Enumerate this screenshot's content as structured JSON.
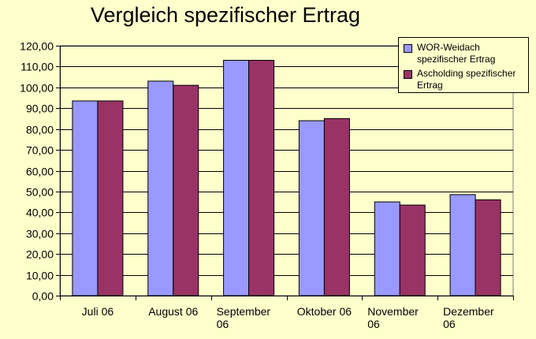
{
  "chart_data": {
    "type": "bar",
    "title": "Vergleich spezifischer Ertrag",
    "categories": [
      "Juli 06",
      "August 06",
      "September\n06",
      "Oktober 06",
      "November\n06",
      "Dezember\n06"
    ],
    "series": [
      {
        "name": "WOR-Weidach spezifischer Ertrag",
        "color": "#9999ff",
        "values": [
          93.5,
          103,
          113,
          84,
          45,
          48.5
        ]
      },
      {
        "name": "Ascholding spezifischer Ertrag",
        "color": "#993366",
        "values": [
          93.5,
          101,
          113,
          85,
          43.5,
          46
        ]
      }
    ],
    "ylim": [
      0,
      120
    ],
    "ytick_step": 10,
    "ytick_labels": [
      "0,00",
      "10,00",
      "20,00",
      "30,00",
      "40,00",
      "50,00",
      "60,00",
      "70,00",
      "80,00",
      "90,00",
      "100,00",
      "110,00",
      "120,00"
    ],
    "xlabel": "",
    "ylabel": "",
    "grid": true,
    "legend_position": "top-right",
    "plot_background": "#ffffcc"
  }
}
